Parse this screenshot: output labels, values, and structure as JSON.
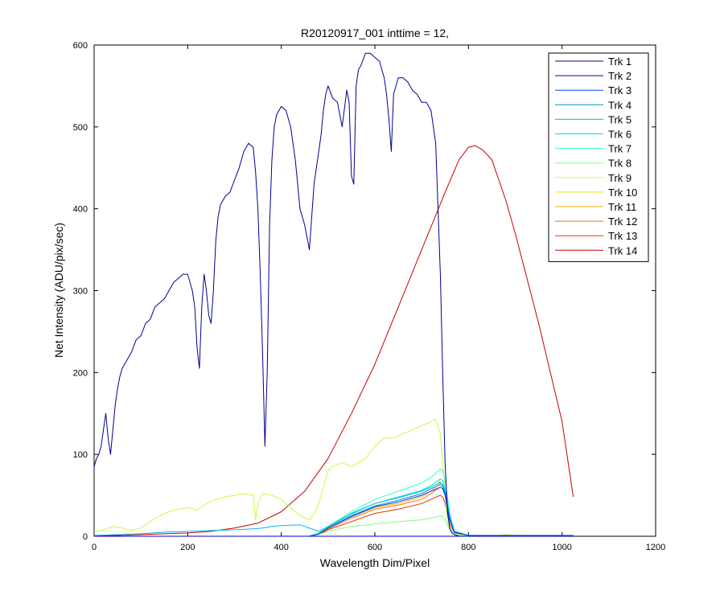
{
  "chart_data": {
    "type": "line",
    "title": "R20120917_001 inttime = 12,",
    "xlabel": "Wavelength Dim/Pixel",
    "ylabel": "Net Intensity (ADU/pix/sec)",
    "xlim": [
      0,
      1200
    ],
    "ylim": [
      0,
      600
    ],
    "xticks": [
      0,
      200,
      400,
      600,
      800,
      1000,
      1200
    ],
    "yticks": [
      0,
      100,
      200,
      300,
      400,
      500,
      600
    ],
    "grid": false,
    "legend_position": "top-right",
    "series": [
      {
        "name": "Trk 1",
        "color": "#00008f",
        "x": [
          0,
          5,
          10,
          15,
          20,
          25,
          30,
          35,
          40,
          45,
          50,
          55,
          60,
          65,
          70,
          80,
          90,
          100,
          110,
          120,
          130,
          140,
          150,
          160,
          170,
          180,
          190,
          200,
          210,
          215,
          220,
          225,
          230,
          235,
          240,
          245,
          250,
          255,
          260,
          265,
          270,
          280,
          290,
          300,
          310,
          320,
          330,
          340,
          345,
          350,
          355,
          360,
          365,
          370,
          375,
          380,
          385,
          390,
          395,
          400,
          410,
          420,
          430,
          440,
          450,
          460,
          470,
          480,
          485,
          490,
          495,
          500,
          510,
          520,
          530,
          540,
          545,
          550,
          555,
          560,
          565,
          570,
          580,
          590,
          600,
          610,
          620,
          625,
          630,
          635,
          640,
          650,
          660,
          670,
          680,
          690,
          700,
          710,
          720,
          730,
          740,
          745,
          750,
          755,
          760,
          765,
          770,
          775,
          780,
          790,
          800,
          850,
          900,
          950,
          1000,
          1024
        ],
        "y": [
          85,
          95,
          100,
          110,
          130,
          150,
          120,
          100,
          130,
          160,
          180,
          195,
          205,
          210,
          215,
          225,
          240,
          245,
          260,
          265,
          280,
          285,
          290,
          300,
          310,
          315,
          320,
          320,
          300,
          280,
          230,
          205,
          280,
          320,
          300,
          270,
          260,
          300,
          360,
          390,
          405,
          415,
          420,
          435,
          450,
          470,
          480,
          475,
          445,
          400,
          320,
          225,
          110,
          200,
          380,
          460,
          500,
          515,
          520,
          525,
          520,
          500,
          460,
          400,
          380,
          350,
          430,
          470,
          490,
          520,
          540,
          550,
          535,
          530,
          500,
          545,
          530,
          440,
          430,
          550,
          570,
          575,
          590,
          590,
          585,
          580,
          560,
          540,
          510,
          470,
          540,
          560,
          560,
          555,
          545,
          540,
          530,
          530,
          520,
          480,
          320,
          200,
          90,
          30,
          10,
          4,
          2,
          1,
          0,
          0,
          0,
          0,
          0,
          0,
          0,
          0
        ]
      },
      {
        "name": "Trk 2",
        "color": "#0000c8",
        "x": [
          0,
          100,
          200,
          300,
          400,
          500,
          600,
          700,
          750,
          760,
          770,
          800,
          1000
        ],
        "y": [
          0,
          0,
          0,
          0,
          0,
          0,
          0,
          0,
          0,
          0,
          0,
          0,
          0
        ]
      },
      {
        "name": "Trk 3",
        "color": "#0040ff",
        "x": [
          0,
          200,
          460,
          480,
          500,
          550,
          600,
          650,
          700,
          720,
          740,
          745,
          750,
          760,
          770,
          800,
          1024
        ],
        "y": [
          0,
          0,
          0,
          3,
          10,
          24,
          36,
          42,
          50,
          55,
          60,
          58,
          50,
          20,
          5,
          1,
          1
        ]
      },
      {
        "name": "Trk 4",
        "color": "#0090d0",
        "x": [
          0,
          200,
          460,
          480,
          500,
          550,
          600,
          650,
          700,
          720,
          740,
          745,
          750,
          760,
          770,
          800,
          1024
        ],
        "y": [
          0,
          0,
          0,
          3,
          10,
          25,
          37,
          44,
          52,
          58,
          63,
          61,
          52,
          22,
          5,
          1,
          1
        ]
      },
      {
        "name": "Trk 5",
        "color": "#00b8e8",
        "x": [
          0,
          50,
          100,
          150,
          200,
          250,
          300,
          340,
          360,
          380,
          400,
          440,
          460,
          480,
          500,
          550,
          600,
          650,
          700,
          720,
          740,
          745,
          750,
          760,
          770,
          800,
          1024
        ],
        "y": [
          1,
          2,
          3,
          5,
          6,
          7,
          8,
          9,
          10,
          12,
          13,
          14,
          10,
          6,
          12,
          28,
          40,
          47,
          55,
          60,
          66,
          63,
          55,
          22,
          6,
          1,
          1
        ]
      },
      {
        "name": "Trk 6",
        "color": "#00e0e8",
        "x": [
          0,
          200,
          460,
          480,
          500,
          550,
          600,
          650,
          700,
          720,
          740,
          745,
          750,
          760,
          770,
          800,
          1024
        ],
        "y": [
          0,
          0,
          0,
          3,
          11,
          27,
          40,
          48,
          56,
          62,
          70,
          68,
          58,
          25,
          6,
          1,
          1
        ]
      },
      {
        "name": "Trk 7",
        "color": "#30ffd0",
        "x": [
          0,
          200,
          460,
          480,
          500,
          550,
          600,
          650,
          700,
          720,
          740,
          745,
          750,
          760,
          770,
          800,
          1024
        ],
        "y": [
          0,
          0,
          0,
          4,
          12,
          30,
          45,
          55,
          65,
          72,
          82,
          80,
          68,
          28,
          6,
          1,
          1
        ]
      },
      {
        "name": "Trk 8",
        "color": "#80ff80",
        "x": [
          0,
          200,
          460,
          480,
          500,
          550,
          600,
          650,
          700,
          720,
          740,
          745,
          750,
          760,
          770,
          800,
          1024
        ],
        "y": [
          0,
          0,
          0,
          2,
          6,
          12,
          15,
          18,
          20,
          22,
          25,
          24,
          20,
          8,
          2,
          0,
          0
        ]
      },
      {
        "name": "Trk 9",
        "color": "#c0ff40",
        "x": [
          0,
          20,
          40,
          60,
          80,
          100,
          120,
          140,
          160,
          180,
          200,
          220,
          240,
          260,
          280,
          300,
          320,
          340,
          345,
          350,
          360,
          380,
          400,
          420,
          440,
          460,
          470,
          480,
          490,
          500,
          510,
          530,
          550,
          580,
          600,
          620,
          640,
          660,
          680,
          700,
          720,
          730,
          740,
          745,
          750,
          755,
          760,
          770,
          800,
          1024
        ],
        "y": [
          5,
          8,
          12,
          10,
          7,
          10,
          18,
          25,
          30,
          33,
          35,
          32,
          40,
          45,
          48,
          50,
          52,
          50,
          20,
          40,
          52,
          50,
          45,
          35,
          25,
          20,
          28,
          40,
          60,
          80,
          85,
          90,
          85,
          95,
          110,
          120,
          120,
          125,
          130,
          135,
          140,
          143,
          125,
          90,
          50,
          20,
          6,
          2,
          1,
          1
        ]
      },
      {
        "name": "Trk 10",
        "color": "#e8e800",
        "x": [
          0,
          200,
          400,
          600,
          800,
          860,
          880,
          900,
          1024
        ],
        "y": [
          0,
          0,
          0,
          0,
          0,
          0,
          2,
          1,
          0
        ]
      },
      {
        "name": "Trk 11",
        "color": "#ffb000",
        "x": [
          0,
          200,
          460,
          480,
          500,
          550,
          600,
          650,
          700,
          720,
          740,
          745,
          750,
          760,
          770,
          800,
          1024
        ],
        "y": [
          0,
          0,
          0,
          3,
          10,
          24,
          35,
          40,
          48,
          55,
          65,
          63,
          55,
          22,
          5,
          1,
          1
        ]
      },
      {
        "name": "Trk 12",
        "color": "#ff7000",
        "x": [
          0,
          200,
          460,
          480,
          500,
          550,
          600,
          650,
          700,
          720,
          740,
          745,
          750,
          760,
          770,
          800,
          1024
        ],
        "y": [
          0,
          0,
          0,
          3,
          9,
          22,
          33,
          38,
          45,
          52,
          60,
          58,
          50,
          20,
          5,
          1,
          1
        ]
      },
      {
        "name": "Trk 13",
        "color": "#e83000",
        "x": [
          0,
          200,
          460,
          480,
          500,
          550,
          600,
          650,
          700,
          720,
          740,
          745,
          750,
          760,
          770,
          800,
          1024
        ],
        "y": [
          0,
          0,
          0,
          2,
          8,
          18,
          28,
          33,
          40,
          45,
          50,
          48,
          40,
          15,
          4,
          1,
          1
        ]
      },
      {
        "name": "Trk 14",
        "color": "#c80000",
        "x": [
          0,
          50,
          100,
          150,
          200,
          250,
          300,
          350,
          400,
          450,
          500,
          550,
          600,
          650,
          700,
          750,
          780,
          800,
          815,
          830,
          850,
          880,
          900,
          950,
          1000,
          1024
        ],
        "y": [
          1,
          1,
          2,
          3,
          4,
          6,
          10,
          16,
          30,
          55,
          95,
          150,
          210,
          280,
          350,
          420,
          460,
          475,
          477,
          472,
          460,
          410,
          370,
          260,
          140,
          48
        ]
      }
    ]
  }
}
